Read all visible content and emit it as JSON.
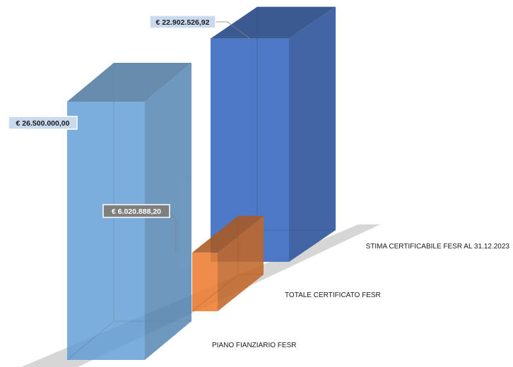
{
  "chart_data": {
    "type": "bar",
    "title": "",
    "categories": [
      "PIANO FIANZIARIO FESR",
      "TOTALE CERTIFICATO FESR",
      "STIMA CERTIFICABILE  FESR AL 31.12.2023"
    ],
    "values": [
      26500000.0,
      6020888.2,
      22902526.92
    ],
    "data_labels": [
      "€ 26.500.000,00",
      "€ 6.020.888,20",
      "€ 22.902.526,92"
    ],
    "colors": [
      "#5b9bd5",
      "#ed7d31",
      "#4472c4"
    ],
    "ylim": [
      0,
      26500000
    ],
    "grid": false,
    "legend": "none",
    "style": "3d-column"
  }
}
